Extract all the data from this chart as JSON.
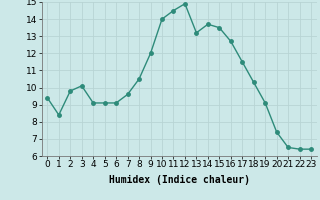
{
  "x": [
    0,
    1,
    2,
    3,
    4,
    5,
    6,
    7,
    8,
    9,
    10,
    11,
    12,
    13,
    14,
    15,
    16,
    17,
    18,
    19,
    20,
    21,
    22,
    23
  ],
  "y": [
    9.4,
    8.4,
    9.8,
    10.1,
    9.1,
    9.1,
    9.1,
    9.6,
    10.5,
    12.0,
    14.0,
    14.5,
    14.9,
    13.2,
    13.7,
    13.5,
    12.7,
    11.5,
    10.3,
    9.1,
    7.4,
    6.5,
    6.4,
    6.4
  ],
  "line_color": "#2e8b7a",
  "marker_color": "#2e8b7a",
  "bg_color": "#cce8e8",
  "grid_color": "#b8d4d4",
  "xlabel": "Humidex (Indice chaleur)",
  "ylim": [
    6,
    15
  ],
  "xlim_min": -0.5,
  "xlim_max": 23.5,
  "yticks": [
    6,
    7,
    8,
    9,
    10,
    11,
    12,
    13,
    14,
    15
  ],
  "xticks": [
    0,
    1,
    2,
    3,
    4,
    5,
    6,
    7,
    8,
    9,
    10,
    11,
    12,
    13,
    14,
    15,
    16,
    17,
    18,
    19,
    20,
    21,
    22,
    23
  ],
  "xlabel_fontsize": 7,
  "tick_fontsize": 6.5,
  "line_width": 1.0,
  "marker_size": 2.5
}
